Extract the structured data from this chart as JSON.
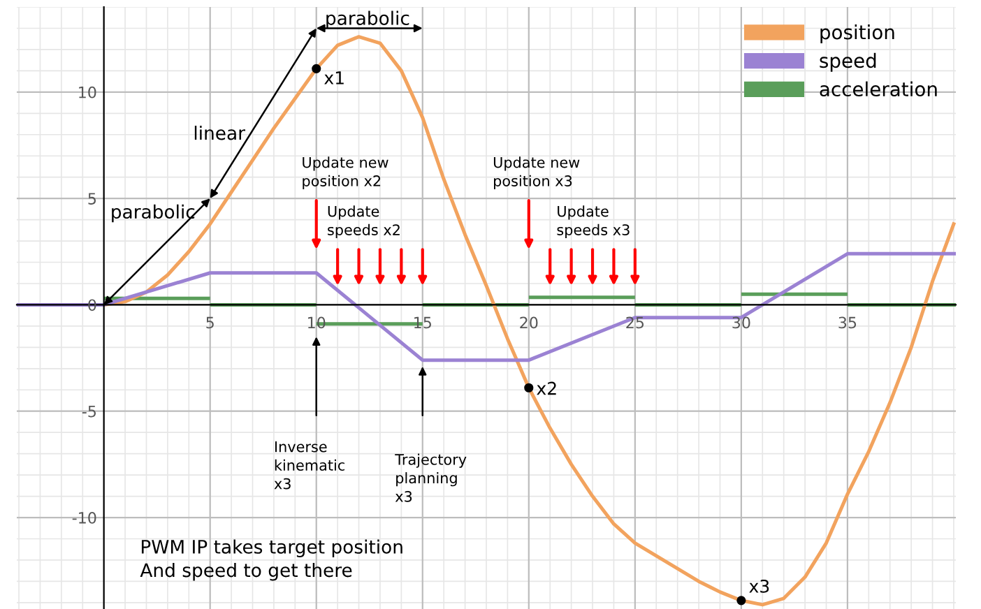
{
  "chart_data": {
    "type": "line",
    "xlim": [
      -4.1,
      40.1
    ],
    "ylim": [
      -14.3,
      14
    ],
    "xticks": [
      5,
      10,
      15,
      20,
      25,
      30,
      35
    ],
    "yticks": [
      -10,
      -5,
      0,
      5,
      10
    ],
    "grid": true,
    "legend": "top right",
    "series": [
      {
        "name": "position",
        "color": "#f2a35e",
        "x": [
          -4.1,
          0,
          1,
          2,
          3,
          4,
          5,
          6,
          7,
          8,
          9,
          10,
          11,
          12,
          13,
          14,
          15,
          16,
          17,
          18,
          19,
          20,
          21,
          22,
          23,
          24,
          25,
          26,
          27,
          28,
          29,
          30,
          31,
          32,
          33,
          34,
          35,
          36,
          37,
          38,
          39,
          40
        ],
        "values": [
          0,
          0,
          0.15,
          0.6,
          1.4,
          2.5,
          3.8,
          5.3,
          6.8,
          8.3,
          9.7,
          11.1,
          12.2,
          12.6,
          12.3,
          11,
          8.8,
          5.9,
          3.3,
          0.9,
          -1.6,
          -3.9,
          -5.8,
          -7.5,
          -9,
          -10.3,
          -11.2,
          -11.8,
          -12.4,
          -13,
          -13.5,
          -13.9,
          -14.1,
          -13.8,
          -12.8,
          -11.2,
          -8.9,
          -6.9,
          -4.6,
          -2,
          1.1,
          3.8
        ]
      },
      {
        "name": "speed",
        "color": "#9b82d3",
        "x": [
          -4.1,
          0,
          5,
          10,
          15,
          20,
          25,
          30,
          35,
          40.1
        ],
        "values": [
          0,
          0,
          1.5,
          1.5,
          -2.6,
          -2.6,
          -0.6,
          -0.6,
          2.4,
          2.4
        ]
      },
      {
        "name": "acceleration",
        "type": "step",
        "color": "#5a9e5a",
        "x": [
          -4.1,
          0,
          5,
          10,
          15,
          20,
          25,
          30,
          35,
          40.1
        ],
        "values": [
          0,
          0.3,
          0,
          -0.9,
          0,
          0.35,
          0,
          0.5,
          0,
          0
        ]
      },
      {
        "type": "scatter",
        "color": "#000000",
        "x": [
          10,
          20,
          30
        ],
        "values": [
          11.1,
          -3.9,
          -13.9
        ]
      }
    ],
    "annotations": [
      {
        "text": "x1",
        "x": 10,
        "y": 11.1
      },
      {
        "text": "x2",
        "x": 20,
        "y": -3.9
      },
      {
        "text": "x3",
        "x": 30,
        "y": -13.9
      },
      {
        "text": "parabolic",
        "x": 0,
        "y": 0
      },
      "linear",
      "parabolic",
      "Update new\nposition x2",
      {
        "text": "Update\nspeeds x2",
        "x": 11,
        "y": 0.9
      },
      "Update new\nposition x3",
      "Update\nspeeds x3",
      "Inverse\nkinematic\nx3",
      "Trajectory\nplanning\nx3",
      "PWM IP takes target position\nAnd speed to get there"
    ]
  }
}
